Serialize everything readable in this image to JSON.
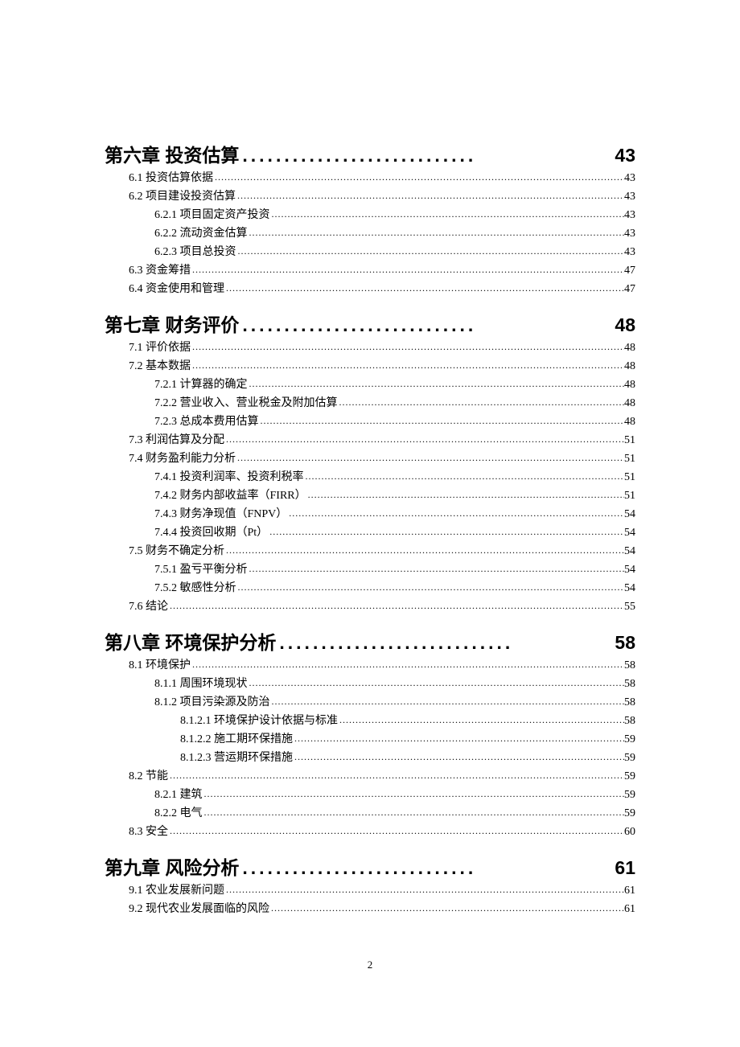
{
  "page_number": "2",
  "chapter_dot_fill": "............................",
  "sub_dot_fill": "....................................................................................................................................................................................................................",
  "toc": [
    {
      "type": "chapter",
      "title": "第六章 投资估算 ",
      "page": "43",
      "children": [
        {
          "level": 1,
          "title": "6.1 投资估算依据 ",
          "page": "43"
        },
        {
          "level": 1,
          "title": "6.2 项目建设投资估算 ",
          "page": "43"
        },
        {
          "level": 2,
          "title": "6.2.1 项目固定资产投资 ",
          "page": "43"
        },
        {
          "level": 2,
          "title": "6.2.2 流动资金估算 ",
          "page": "43"
        },
        {
          "level": 2,
          "title": "6.2.3 项目总投资 ",
          "page": "43"
        },
        {
          "level": 1,
          "title": "6.3 资金筹措 ",
          "page": "47"
        },
        {
          "level": 1,
          "title": "6.4 资金使用和管理 ",
          "page": "47"
        }
      ]
    },
    {
      "type": "chapter",
      "title": "第七章 财务评价 ",
      "page": "48",
      "children": [
        {
          "level": 1,
          "title": "7.1 评价依据 ",
          "page": "48"
        },
        {
          "level": 1,
          "title": "7.2 基本数据 ",
          "page": "48"
        },
        {
          "level": 2,
          "title": "7.2.1 计算器的确定 ",
          "page": "48"
        },
        {
          "level": 2,
          "title": "7.2.2 营业收入、营业税金及附加估算 ",
          "page": "48"
        },
        {
          "level": 2,
          "title": "7.2.3 总成本费用估算 ",
          "page": "48"
        },
        {
          "level": 1,
          "title": "7.3 利润估算及分配 ",
          "page": "51"
        },
        {
          "level": 1,
          "title": "7.4 财务盈利能力分析 ",
          "page": "51"
        },
        {
          "level": 2,
          "title": "7.4.1 投资利润率、投资利税率 ",
          "page": "51"
        },
        {
          "level": 2,
          "title": "7.4.2 财务内部收益率（FIRR） ",
          "page": "51"
        },
        {
          "level": 2,
          "title": "7.4.3 财务净现值（FNPV） ",
          "page": "54"
        },
        {
          "level": 2,
          "title": "7.4.4 投资回收期（Pt） ",
          "page": "54"
        },
        {
          "level": 1,
          "title": "7.5 财务不确定分析 ",
          "page": "54"
        },
        {
          "level": 2,
          "title": "7.5.1 盈亏平衡分析 ",
          "page": "54"
        },
        {
          "level": 2,
          "title": "7.5.2 敏感性分析 ",
          "page": "54"
        },
        {
          "level": 1,
          "title": "7.6 结论 ",
          "page": "55"
        }
      ]
    },
    {
      "type": "chapter",
      "title": "第八章 环境保护分析 ",
      "page": "58",
      "children": [
        {
          "level": 1,
          "title": "8.1 环境保护 ",
          "page": "58"
        },
        {
          "level": 2,
          "title": "8.1.1 周围环境现状 ",
          "page": "58"
        },
        {
          "level": 2,
          "title": "8.1.2 项目污染源及防治 ",
          "page": "58"
        },
        {
          "level": 3,
          "title": "8.1.2.1 环境保护设计依据与标准 ",
          "page": "58"
        },
        {
          "level": 3,
          "title": "8.1.2.2 施工期环保措施 ",
          "page": "59"
        },
        {
          "level": 3,
          "title": "8.1.2.3 营运期环保措施 ",
          "page": "59"
        },
        {
          "level": 1,
          "title": "8.2 节能 ",
          "page": "59"
        },
        {
          "level": 2,
          "title": "8.2.1 建筑 ",
          "page": "59"
        },
        {
          "level": 2,
          "title": "8.2.2 电气 ",
          "page": "59"
        },
        {
          "level": 1,
          "title": "8.3 安全 ",
          "page": "60"
        }
      ]
    },
    {
      "type": "chapter",
      "title": "第九章 风险分析 ",
      "page": "61",
      "children": [
        {
          "level": 1,
          "title": "9.1 农业发展新问题 ",
          "page": "61"
        },
        {
          "level": 1,
          "title": "9.2 现代农业发展面临的风险 ",
          "page": "61"
        }
      ]
    }
  ]
}
